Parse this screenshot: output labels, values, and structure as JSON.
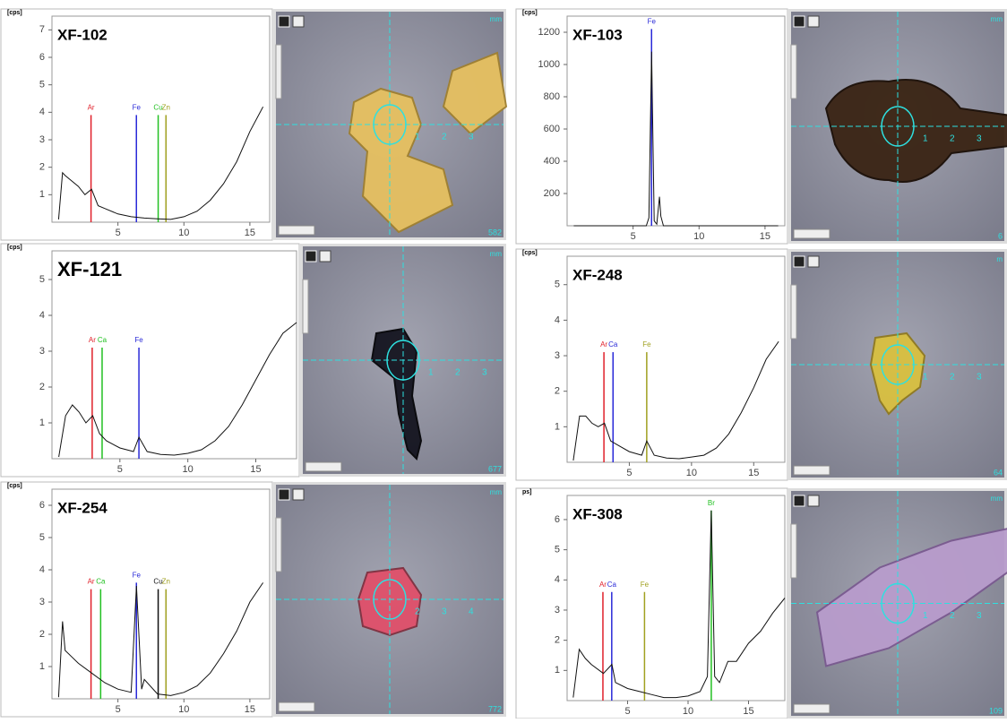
{
  "chart_data": [
    {
      "type": "spectrum",
      "title": "XF-102",
      "y_label": "[cps]",
      "xlim": [
        0,
        16.5
      ],
      "xticks": [
        5,
        10,
        15
      ],
      "ylim": [
        0,
        7.5
      ],
      "yticks": [
        1,
        2,
        3,
        4,
        5,
        6,
        7
      ],
      "x": [
        0.5,
        0.8,
        1,
        1.5,
        2,
        2.5,
        3,
        3.5,
        4,
        5,
        6,
        7,
        8,
        9,
        10,
        11,
        12,
        13,
        14,
        15,
        16
      ],
      "values": [
        0.1,
        1.8,
        1.7,
        1.5,
        1.3,
        1.0,
        1.2,
        0.6,
        0.5,
        0.3,
        0.2,
        0.15,
        0.12,
        0.1,
        0.2,
        0.4,
        0.8,
        1.4,
        2.2,
        3.3,
        4.2
      ],
      "elements": [
        {
          "name": "Ar",
          "color": "#e0202a",
          "x": 2.96,
          "height": 3.9
        },
        {
          "name": "Fe",
          "color": "#2a2ad8",
          "x": 6.4,
          "height": 3.9
        },
        {
          "name": "Cu",
          "color": "#22c022",
          "x": 8.05,
          "height": 3.9
        },
        {
          "name": "Zn",
          "color": "#a0a020",
          "x": 8.64,
          "height": 3.9
        }
      ],
      "image": {
        "unit": "mm",
        "corner": "582",
        "scale": [
          1,
          2,
          3
        ]
      }
    },
    {
      "type": "spectrum",
      "title": "XF-103",
      "y_label": "[cps]",
      "xlim": [
        0,
        16.5
      ],
      "xticks": [
        5,
        10,
        15
      ],
      "ylim": [
        0,
        1300
      ],
      "yticks": [
        200,
        400,
        600,
        800,
        1000,
        1200
      ],
      "x": [
        0.5,
        5,
        6,
        6.2,
        6.4,
        6.6,
        6.8,
        7.0,
        7.1,
        7.3,
        8,
        16
      ],
      "values": [
        0,
        0,
        0,
        50,
        1080,
        30,
        10,
        180,
        60,
        0,
        0,
        0
      ],
      "elements": [
        {
          "name": "Fe",
          "color": "#2a2ad8",
          "x": 6.4,
          "height": 1220
        }
      ],
      "image": {
        "unit": "mm",
        "corner": "6",
        "scale": [
          1,
          2,
          3
        ]
      }
    },
    {
      "type": "spectrum",
      "title": "XF-121",
      "y_label": "[cps]",
      "xlim": [
        0,
        18
      ],
      "xticks": [
        5,
        10,
        15
      ],
      "ylim": [
        0,
        5.8
      ],
      "yticks": [
        1,
        2,
        3,
        4,
        5
      ],
      "x": [
        0.5,
        1,
        1.5,
        2,
        2.5,
        3,
        3.5,
        4,
        5,
        6,
        6.4,
        7,
        8,
        9,
        10,
        11,
        12,
        13,
        14,
        15,
        16,
        17,
        18
      ],
      "values": [
        0.05,
        1.2,
        1.5,
        1.3,
        1.0,
        1.2,
        0.7,
        0.5,
        0.3,
        0.2,
        0.6,
        0.2,
        0.12,
        0.1,
        0.15,
        0.25,
        0.5,
        0.9,
        1.5,
        2.2,
        2.9,
        3.5,
        3.8
      ],
      "elements": [
        {
          "name": "Ar",
          "color": "#e0202a",
          "x": 2.96,
          "height": 3.1
        },
        {
          "name": "Ca",
          "color": "#22c022",
          "x": 3.69,
          "height": 3.1
        },
        {
          "name": "Fe",
          "color": "#2a2ad8",
          "x": 6.4,
          "height": 3.1
        }
      ],
      "image": {
        "unit": "mm",
        "corner": "677",
        "scale": [
          1,
          2,
          3
        ]
      }
    },
    {
      "type": "spectrum",
      "title": "XF-248",
      "y_label": "[cps]",
      "xlim": [
        0,
        17.5
      ],
      "xticks": [
        5,
        10,
        15
      ],
      "ylim": [
        0,
        5.8
      ],
      "yticks": [
        1,
        2,
        3,
        4,
        5
      ],
      "x": [
        0.5,
        1,
        1.5,
        2,
        2.5,
        3,
        3.5,
        4,
        5,
        6,
        6.4,
        7,
        8,
        9,
        10,
        11,
        12,
        13,
        14,
        15,
        16,
        17
      ],
      "values": [
        0.05,
        1.3,
        1.3,
        1.1,
        1.0,
        1.1,
        0.6,
        0.5,
        0.3,
        0.2,
        0.6,
        0.2,
        0.12,
        0.1,
        0.15,
        0.2,
        0.4,
        0.8,
        1.4,
        2.1,
        2.9,
        3.4
      ],
      "elements": [
        {
          "name": "Ar",
          "color": "#e0202a",
          "x": 2.96,
          "height": 3.1
        },
        {
          "name": "Ca",
          "color": "#2a2ad8",
          "x": 3.69,
          "height": 3.1
        },
        {
          "name": "Fe",
          "color": "#a0a020",
          "x": 6.4,
          "height": 3.1
        }
      ],
      "image": {
        "unit": "m",
        "corner": "64",
        "scale": [
          1,
          2,
          3
        ]
      }
    },
    {
      "type": "spectrum",
      "title": "XF-254",
      "y_label": "[cps]",
      "xlim": [
        0,
        16.5
      ],
      "xticks": [
        5,
        10,
        15
      ],
      "ylim": [
        0,
        6.5
      ],
      "yticks": [
        1,
        2,
        3,
        4,
        5,
        6
      ],
      "x": [
        0.5,
        0.8,
        1,
        1.5,
        2,
        3,
        4,
        5,
        6,
        6.4,
        6.8,
        7,
        8,
        9,
        10,
        11,
        12,
        13,
        14,
        15,
        16
      ],
      "values": [
        0.05,
        2.4,
        1.5,
        1.3,
        1.1,
        0.8,
        0.5,
        0.3,
        0.2,
        3.5,
        0.3,
        0.6,
        0.15,
        0.1,
        0.2,
        0.4,
        0.8,
        1.4,
        2.1,
        3.0,
        3.6
      ],
      "elements": [
        {
          "name": "Ar",
          "color": "#e0202a",
          "x": 2.96,
          "height": 3.4
        },
        {
          "name": "Ca",
          "color": "#22c022",
          "x": 3.69,
          "height": 3.4
        },
        {
          "name": "Fe",
          "color": "#2a2ad8",
          "x": 6.4,
          "height": 3.6
        },
        {
          "name": "Cu",
          "color": "#111111",
          "x": 8.05,
          "height": 3.4
        },
        {
          "name": "Zn",
          "color": "#a0a020",
          "x": 8.64,
          "height": 3.4
        }
      ],
      "image": {
        "unit": "mm",
        "corner": "772",
        "scale": [
          2,
          3,
          4
        ]
      }
    },
    {
      "type": "spectrum",
      "title": "XF-308",
      "y_label": "ps]",
      "xlim": [
        0,
        18
      ],
      "xticks": [
        5,
        10,
        15
      ],
      "ylim": [
        0,
        6.8
      ],
      "yticks": [
        1,
        2,
        3,
        4,
        5,
        6
      ],
      "x": [
        0.5,
        1,
        1.5,
        2,
        3,
        3.7,
        4,
        5,
        6,
        7,
        8,
        9,
        10,
        11,
        11.6,
        11.92,
        12.2,
        12.6,
        13.3,
        14,
        15,
        16,
        17,
        18
      ],
      "values": [
        0.1,
        1.7,
        1.4,
        1.2,
        0.9,
        1.2,
        0.6,
        0.4,
        0.3,
        0.2,
        0.1,
        0.1,
        0.15,
        0.3,
        0.8,
        6.3,
        0.8,
        0.6,
        1.3,
        1.3,
        1.9,
        2.3,
        2.9,
        3.4
      ],
      "elements": [
        {
          "name": "Ar",
          "color": "#e0202a",
          "x": 2.96,
          "height": 3.6
        },
        {
          "name": "Ca",
          "color": "#2a2ad8",
          "x": 3.69,
          "height": 3.6
        },
        {
          "name": "Fe",
          "color": "#a0a020",
          "x": 6.4,
          "height": 3.6
        },
        {
          "name": "Br",
          "color": "#22c022",
          "x": 11.92,
          "height": 6.3
        }
      ],
      "image": {
        "unit": "mm",
        "corner": "109",
        "scale": [
          1,
          2,
          3
        ]
      }
    }
  ]
}
